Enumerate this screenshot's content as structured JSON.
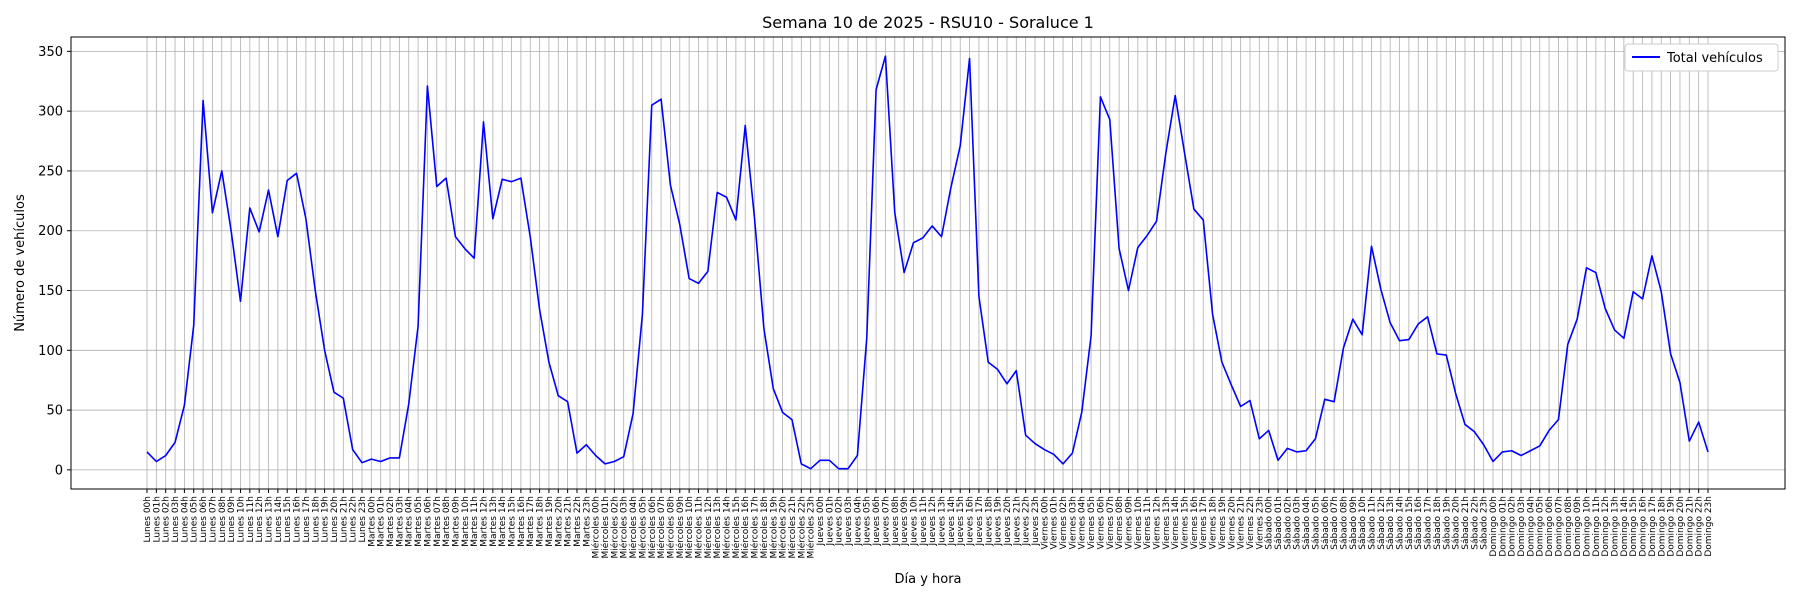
{
  "chart_data": {
    "type": "line",
    "title": "Semana 10 de 2025 - RSU10 - Soraluce 1",
    "xlabel": "Día y hora",
    "ylabel": "Número de vehículos",
    "ylim": [
      -16,
      362
    ],
    "yticks": [
      0,
      50,
      100,
      150,
      200,
      250,
      300,
      350
    ],
    "grid": true,
    "legend": "top-right",
    "days": [
      "Lunes",
      "Martes",
      "Miércoles",
      "Jueves",
      "Viernes",
      "Sábado",
      "Domingo"
    ],
    "series": [
      {
        "name": "Total vehículos",
        "color": "#0000ff",
        "values": [
          15,
          7,
          12,
          23,
          54,
          121,
          309,
          215,
          250,
          200,
          141,
          219,
          199,
          234,
          195,
          242,
          248,
          210,
          150,
          100,
          65,
          60,
          17,
          6,
          9,
          7,
          10,
          10,
          55,
          120,
          321,
          237,
          244,
          195,
          185,
          177,
          291,
          210,
          243,
          241,
          244,
          195,
          134,
          90,
          62,
          57,
          14,
          21,
          12,
          5,
          7,
          11,
          47,
          130,
          305,
          310,
          238,
          205,
          160,
          156,
          166,
          232,
          228,
          209,
          288,
          210,
          118,
          68,
          48,
          42,
          5,
          1,
          8,
          8,
          1,
          1,
          12,
          110,
          318,
          346,
          215,
          165,
          190,
          194,
          204,
          195,
          236,
          271,
          344,
          145,
          90,
          84,
          72,
          83,
          29,
          22,
          17,
          13,
          5,
          14,
          48,
          112,
          312,
          293,
          185,
          150,
          186,
          196,
          208,
          265,
          313,
          265,
          218,
          209,
          130,
          90,
          71,
          53,
          58,
          26,
          33,
          8,
          18,
          15,
          16,
          26,
          59,
          57,
          102,
          126,
          113,
          187,
          151,
          123,
          108,
          109,
          122,
          128,
          97,
          96,
          64,
          38,
          32,
          21,
          7,
          15,
          16,
          12,
          16,
          20,
          33,
          42,
          105,
          126,
          169,
          165,
          135,
          117,
          110,
          149,
          143,
          179,
          149,
          97,
          73,
          24,
          40,
          15
        ]
      }
    ]
  }
}
